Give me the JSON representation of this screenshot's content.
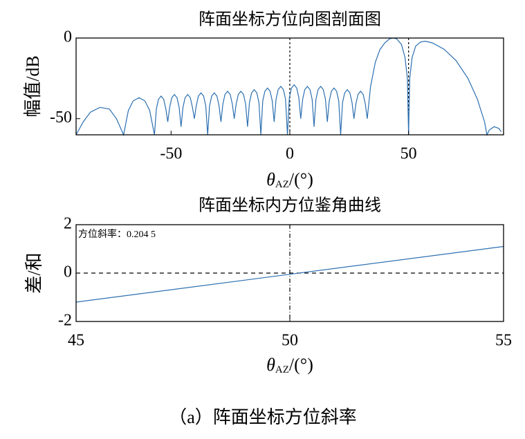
{
  "chart_data": [
    {
      "type": "line",
      "title": "阵面坐标方位向图剖面图",
      "ylabel": "幅值/dB",
      "xlabel": {
        "symbol": "θ",
        "sub": "AZ",
        "rest": "/(°)"
      },
      "color": "#2b6fb0",
      "xlim": [
        -90,
        90
      ],
      "ylim": [
        -60,
        0
      ],
      "xticks": [
        -50,
        0,
        50
      ],
      "yticks": [
        -50,
        0
      ],
      "ref_x": [
        0,
        50
      ],
      "x": [
        -90,
        -87,
        -84,
        -80,
        -76,
        -73,
        -71.5,
        -70,
        -68,
        -66,
        -63.5,
        -61,
        -59,
        -57,
        -56.2,
        -55.3,
        -54.2,
        -53.1,
        -52.2,
        -51.4,
        -50.6,
        -49.7,
        -48.6,
        -47.5,
        -46.6,
        -45.8,
        -45,
        -44.1,
        -43,
        -41.9,
        -41,
        -40.2,
        -39.4,
        -38.5,
        -37.4,
        -36.3,
        -35.4,
        -34.6,
        -33.8,
        -32.9,
        -31.8,
        -30.7,
        -29.8,
        -29,
        -28.2,
        -27.3,
        -26.2,
        -25.1,
        -24.2,
        -23.4,
        -22.6,
        -21.7,
        -20.6,
        -19.5,
        -18.6,
        -17.8,
        -17,
        -16.1,
        -15,
        -13.9,
        -13,
        -12.2,
        -11.4,
        -10.5,
        -9.4,
        -8.3,
        -7.4,
        -6.6,
        -5.8,
        -4.9,
        -3.8,
        -2.7,
        -1.8,
        -1,
        -0.2,
        0.7,
        1.8,
        2.9,
        3.8,
        4.6,
        5.4,
        6.3,
        7.4,
        8.5,
        9.4,
        10.2,
        11,
        11.9,
        13,
        14.1,
        15,
        15.8,
        16.6,
        17.5,
        18.6,
        19.7,
        20.6,
        21.4,
        22.2,
        23.1,
        24.2,
        25.3,
        26.2,
        27,
        27.8,
        28.7,
        29.8,
        30.9,
        31.8,
        32.6,
        34,
        36,
        38,
        40,
        42,
        43.5,
        45,
        47,
        48.5,
        49.5,
        50,
        50.5,
        51.5,
        53,
        55,
        57,
        60,
        65,
        70,
        75,
        79,
        82,
        83,
        84,
        86,
        88,
        89
      ],
      "values": [
        -60,
        -52,
        -46,
        -43,
        -44,
        -50,
        -55,
        -60,
        -45,
        -39,
        -37,
        -39,
        -45,
        -60,
        -44,
        -38,
        -36,
        -38,
        -44,
        -52,
        -43,
        -37,
        -35,
        -37,
        -43,
        -55,
        -43,
        -37,
        -35,
        -37,
        -43,
        -50,
        -42,
        -36,
        -34,
        -36,
        -42,
        -60,
        -42,
        -36,
        -34,
        -36,
        -42,
        -52,
        -41,
        -35,
        -33,
        -35,
        -41,
        -50,
        -41,
        -35,
        -33,
        -35,
        -41,
        -55,
        -40,
        -34,
        -32,
        -34,
        -40,
        -60,
        -39,
        -33,
        -31,
        -33,
        -39,
        -52,
        -38,
        -32,
        -30,
        -32,
        -38,
        -60,
        -37,
        -31,
        -29,
        -31,
        -37,
        -50,
        -38,
        -32,
        -30,
        -32,
        -38,
        -55,
        -38,
        -32,
        -30,
        -32,
        -38,
        -52,
        -39,
        -33,
        -31,
        -33,
        -39,
        -60,
        -40,
        -34,
        -32,
        -34,
        -40,
        -50,
        -41,
        -35,
        -33,
        -35,
        -41,
        -50,
        -30,
        -15,
        -7,
        -3,
        -0.5,
        0,
        -0.5,
        -4,
        -12,
        -25,
        -60,
        -25,
        -12,
        -5,
        -2.5,
        -2,
        -3,
        -7,
        -14,
        -25,
        -38,
        -52,
        -60,
        -57,
        -55,
        -56,
        -58
      ]
    },
    {
      "type": "line",
      "title": "阵面坐标内方位鉴角曲线",
      "ylabel": "差/和",
      "xlabel": {
        "symbol": "θ",
        "sub": "AZ",
        "rest": "/(°)"
      },
      "annotation": "方位斜率：0.204 5",
      "color": "#2b6fb0",
      "xlim": [
        45,
        55
      ],
      "ylim": [
        -2,
        2
      ],
      "xticks": [
        45,
        50,
        55
      ],
      "yticks": [
        -2,
        0,
        2
      ],
      "ref_x": [
        50
      ],
      "ref_y": [
        0
      ],
      "x": [
        45,
        55
      ],
      "values": [
        -1.2,
        1.1
      ]
    }
  ],
  "caption": "（a）阵面坐标方位斜率"
}
